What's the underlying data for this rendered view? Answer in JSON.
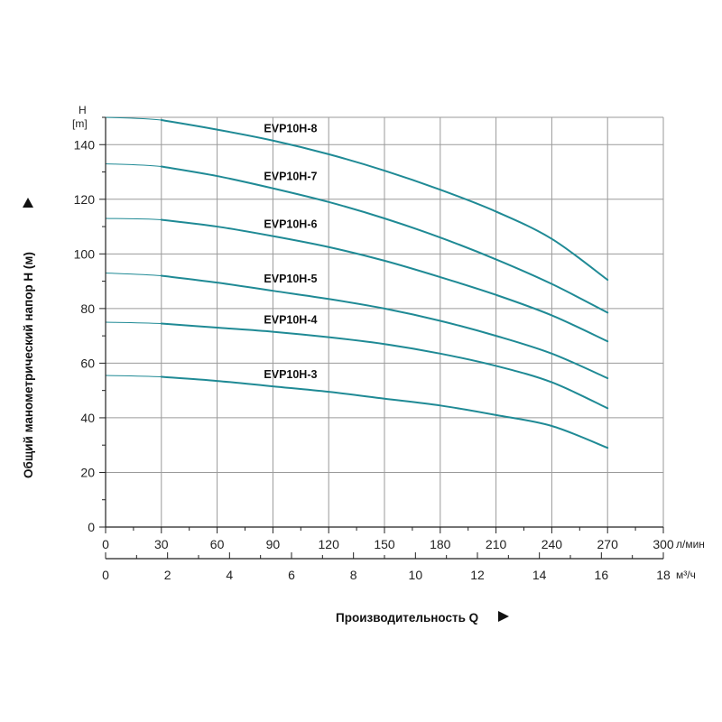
{
  "chart_data": {
    "type": "line",
    "ylabel": "Общий манометрический напор H (м)",
    "xlabel": "Производительность Q",
    "y_axis_unit_top": "H",
    "y_axis_unit_bottom": "[m]",
    "x_unit_lpm": "л/мин",
    "x_unit_m3h": "м³/ч",
    "ylim": [
      0,
      150
    ],
    "xlim_lpm": [
      0,
      300
    ],
    "xlim_m3h": [
      0,
      18
    ],
    "y_ticks": [
      "0",
      "20",
      "40",
      "60",
      "80",
      "100",
      "120",
      "140"
    ],
    "x_ticks_lpm": [
      "0",
      "30",
      "60",
      "90",
      "120",
      "150",
      "180",
      "210",
      "240",
      "270",
      "300"
    ],
    "x_ticks_m3h": [
      "0",
      "2",
      "4",
      "6",
      "8",
      "10",
      "12",
      "14",
      "16",
      "18"
    ],
    "grid": true,
    "line_color": "#1f8a95",
    "x": [
      0,
      30,
      60,
      90,
      120,
      150,
      180,
      210,
      240,
      270
    ],
    "series": [
      {
        "name": "EVP10H-3",
        "values": [
          55.5,
          55,
          53.5,
          51.5,
          49.5,
          47,
          44.5,
          41,
          37,
          29
        ]
      },
      {
        "name": "EVP10H-4",
        "values": [
          75,
          74.5,
          73,
          71.5,
          69.5,
          67,
          63.5,
          59,
          53,
          43.5
        ]
      },
      {
        "name": "EVP10H-5",
        "values": [
          93,
          92,
          89.5,
          86.5,
          83.5,
          80,
          75.5,
          70,
          63.5,
          54.5
        ]
      },
      {
        "name": "EVP10H-6",
        "values": [
          113,
          112.5,
          110,
          106.5,
          102.5,
          97.5,
          91.5,
          85,
          77.5,
          68
        ]
      },
      {
        "name": "EVP10H-7",
        "values": [
          133,
          132,
          128.5,
          124,
          119,
          113,
          106,
          98,
          89,
          78.5
        ]
      },
      {
        "name": "EVP10H-8",
        "values": [
          150,
          149,
          145.5,
          141.5,
          136.5,
          130.5,
          123.5,
          115.5,
          105.5,
          90.5
        ]
      }
    ]
  }
}
